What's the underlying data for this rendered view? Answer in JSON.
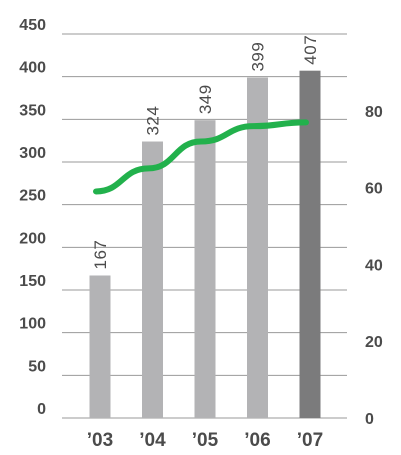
{
  "chart_data": {
    "type": "bar",
    "title": "",
    "xlabel": "",
    "ylabel": "",
    "categories": [
      "’03",
      "’04",
      "’05",
      "’06",
      "’07"
    ],
    "series": [
      {
        "kind": "bar",
        "axis": "left",
        "values": [
          167,
          324,
          349,
          399,
          407
        ],
        "data_labels": [
          "167",
          "324",
          "349",
          "399",
          "407"
        ]
      },
      {
        "kind": "line",
        "axis": "right",
        "values": [
          59,
          65,
          72,
          76,
          77
        ]
      }
    ],
    "ylim": [
      0,
      450
    ],
    "yticks": [
      "0",
      "50",
      "100",
      "150",
      "200",
      "250",
      "300",
      "350",
      "400",
      "450"
    ],
    "y2lim": [
      0,
      100
    ],
    "y2ticks": [
      "0",
      "20",
      "40",
      "60",
      "80"
    ],
    "grid": true,
    "colors": {
      "bar": "#b3b3b5",
      "bar_highlight": "#7b7b7c",
      "line": "#22b14c",
      "grid": "#9a9a9a",
      "text": "#4b4b4b"
    }
  }
}
